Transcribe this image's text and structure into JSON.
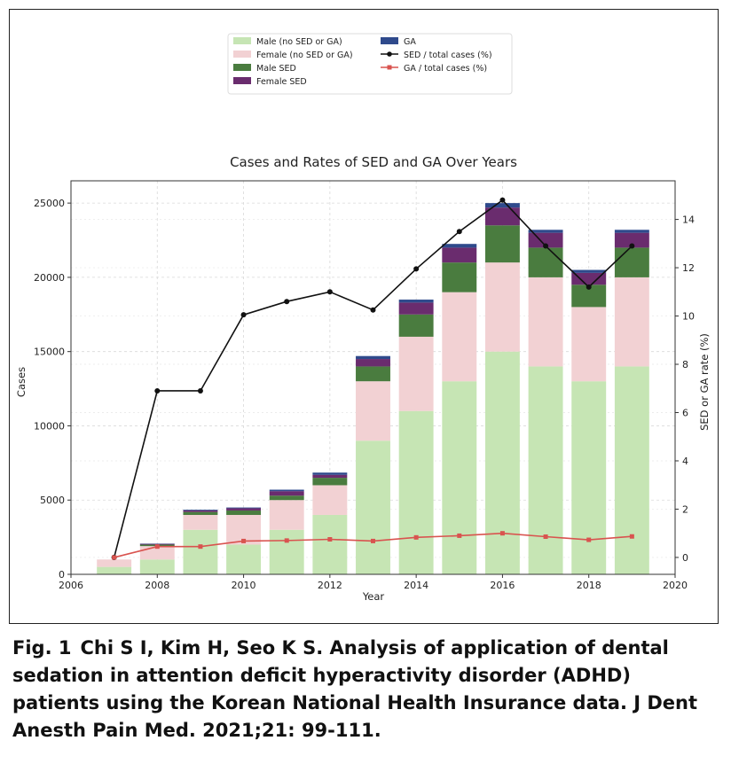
{
  "chart_data": {
    "type": "bar",
    "title": "Cases and Rates of SED and GA Over Years",
    "xlabel": "Year",
    "ylabel": "Cases",
    "y2label": "SED or GA rate (%)",
    "xlim": [
      2006,
      2020
    ],
    "ylim": [
      0,
      26500
    ],
    "y2lim": [
      -0.7,
      15.6
    ],
    "xticks": [
      2006,
      2008,
      2010,
      2012,
      2014,
      2016,
      2018,
      2020
    ],
    "yticks": [
      0,
      5000,
      10000,
      15000,
      20000,
      25000
    ],
    "y2ticks": [
      0,
      2,
      4,
      6,
      8,
      10,
      12,
      14
    ],
    "grid": true,
    "legend_position": "top-center",
    "years": [
      2007,
      2008,
      2009,
      2010,
      2011,
      2012,
      2013,
      2014,
      2015,
      2016,
      2017,
      2018,
      2019
    ],
    "stacked_series": [
      {
        "name": "Male (no SED or GA)",
        "color": "#c6e5b4",
        "values": [
          500,
          1000,
          3000,
          2000,
          3000,
          4000,
          9000,
          11000,
          13000,
          15000,
          14000,
          13000,
          14000
        ]
      },
      {
        "name": "Female (no SED or GA)",
        "color": "#f2d1d3",
        "values": [
          500,
          900,
          1000,
          2000,
          2000,
          2000,
          4000,
          5000,
          6000,
          6000,
          6000,
          5000,
          6000
        ]
      },
      {
        "name": "Male SED",
        "color": "#4a7c3f",
        "values": [
          0,
          100,
          200,
          300,
          300,
          500,
          1000,
          1500,
          2000,
          2500,
          2000,
          1500,
          2000
        ]
      },
      {
        "name": "Female SED",
        "color": "#6a2c6e",
        "values": [
          0,
          50,
          100,
          150,
          300,
          200,
          500,
          800,
          1000,
          1200,
          1000,
          800,
          1000
        ]
      },
      {
        "name": "GA",
        "color": "#2f4a8c",
        "values": [
          0,
          20,
          50,
          50,
          100,
          150,
          200,
          200,
          250,
          300,
          200,
          200,
          200
        ]
      }
    ],
    "line_series": [
      {
        "name": "SED / total cases (%)",
        "color": "#111111",
        "marker": "circle",
        "values": [
          0,
          6.9,
          6.9,
          10.05,
          10.6,
          11.0,
          10.25,
          11.95,
          13.5,
          14.8,
          12.9,
          11.2,
          12.9
        ]
      },
      {
        "name": "GA / total cases (%)",
        "color": "#d9534f",
        "marker": "square",
        "values": [
          0,
          0.45,
          0.45,
          0.68,
          0.7,
          0.75,
          0.68,
          0.83,
          0.9,
          1.0,
          0.86,
          0.73,
          0.87
        ]
      }
    ]
  },
  "caption": {
    "label": "Fig. 1",
    "text": "Chi S I, Kim H, Seo K S. Analysis of application of dental sedation in attention deficit hyperactivity disorder (ADHD) patients using the Korean National Health Insurance data. J Dent Anesth Pain Med. 2021;21: 99-111."
  }
}
